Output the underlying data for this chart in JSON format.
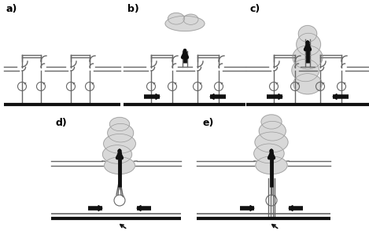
{
  "bg_color": "#ffffff",
  "line_color": "#666666",
  "ground_color": "#111111",
  "cloud_color": "#d8d8d8",
  "cloud_edge": "#999999",
  "arrow_color": "#111111",
  "panel_labels": [
    "a)",
    "b)",
    "c)",
    "d)",
    "e)"
  ],
  "label_fontsize": 9,
  "label_fontweight": "bold",
  "lw_stream": 1.0,
  "lw_ground": 3.0,
  "lw_ground2": 1.2
}
